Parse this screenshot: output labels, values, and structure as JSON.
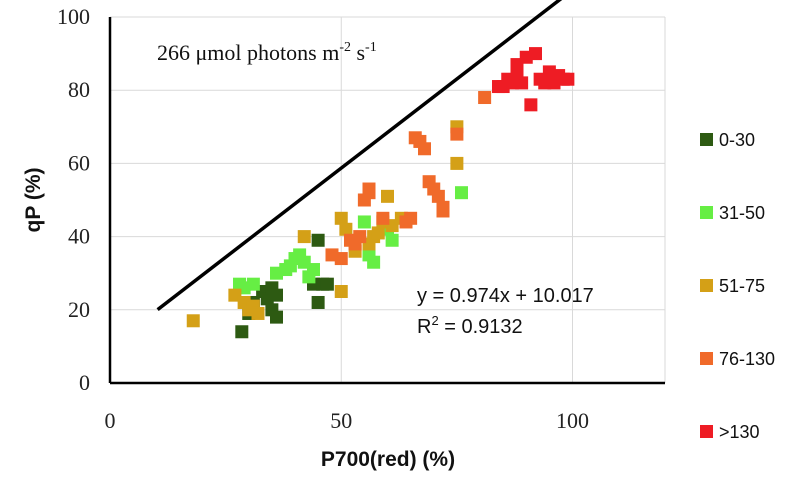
{
  "chart_data": {
    "type": "scatter",
    "title": "",
    "annotation": {
      "prefix": "266 μmol photons m",
      "sup1": "-2",
      "mid": " s",
      "sup2": "-1"
    },
    "xlabel": "P700(red) (%)",
    "ylabel": "qP (%)",
    "xlim": [
      0,
      120
    ],
    "ylim": [
      0,
      100
    ],
    "xticks": [
      0,
      50,
      100
    ],
    "yticks": [
      0,
      20,
      40,
      60,
      80,
      100
    ],
    "grid": true,
    "legend_position": "right",
    "series": [
      {
        "name": "0-30",
        "color": "#2d5a12",
        "points": [
          [
            28.5,
            14
          ],
          [
            30,
            19
          ],
          [
            31,
            22
          ],
          [
            33,
            25
          ],
          [
            34,
            23
          ],
          [
            35,
            26
          ],
          [
            35,
            20
          ],
          [
            36,
            18
          ],
          [
            36,
            24
          ],
          [
            44,
            27
          ],
          [
            45,
            39
          ],
          [
            45,
            22
          ],
          [
            46,
            27
          ],
          [
            47,
            27
          ]
        ]
      },
      {
        "name": "31-50",
        "color": "#66ee44",
        "points": [
          [
            28,
            27
          ],
          [
            29,
            26
          ],
          [
            31,
            27
          ],
          [
            36,
            30
          ],
          [
            38,
            31
          ],
          [
            39,
            32
          ],
          [
            40,
            34
          ],
          [
            41,
            35
          ],
          [
            42,
            33
          ],
          [
            43,
            29
          ],
          [
            44,
            31
          ],
          [
            55,
            44
          ],
          [
            56,
            35
          ],
          [
            57,
            33
          ],
          [
            60,
            42
          ],
          [
            61,
            39
          ],
          [
            76,
            52
          ]
        ]
      },
      {
        "name": "51-75",
        "color": "#d4a017",
        "points": [
          [
            18,
            17
          ],
          [
            27,
            24
          ],
          [
            29,
            22
          ],
          [
            30,
            20
          ],
          [
            31,
            21
          ],
          [
            32,
            19
          ],
          [
            42,
            40
          ],
          [
            50,
            25
          ],
          [
            50,
            45
          ],
          [
            51,
            42
          ],
          [
            53,
            36
          ],
          [
            56,
            38
          ],
          [
            57,
            40
          ],
          [
            58,
            41
          ],
          [
            59,
            44
          ],
          [
            60,
            51
          ],
          [
            61,
            43
          ],
          [
            63,
            45
          ],
          [
            75,
            60
          ],
          [
            75,
            70
          ]
        ]
      },
      {
        "name": "76-130",
        "color": "#f06a2a",
        "points": [
          [
            48,
            35
          ],
          [
            50,
            34
          ],
          [
            52,
            39
          ],
          [
            53,
            38
          ],
          [
            54,
            40
          ],
          [
            55,
            50
          ],
          [
            56,
            52
          ],
          [
            56,
            53
          ],
          [
            59,
            45
          ],
          [
            64,
            44
          ],
          [
            65,
            45
          ],
          [
            66,
            67
          ],
          [
            67,
            66
          ],
          [
            68,
            64
          ],
          [
            69,
            55
          ],
          [
            70,
            53
          ],
          [
            71,
            51
          ],
          [
            72,
            48
          ],
          [
            72,
            47
          ],
          [
            75,
            68
          ],
          [
            81,
            78
          ]
        ]
      },
      {
        "name": ">130",
        "color": "#ee1c24",
        "points": [
          [
            84,
            81
          ],
          [
            85,
            81
          ],
          [
            86,
            83
          ],
          [
            87,
            82
          ],
          [
            88,
            84
          ],
          [
            88,
            87
          ],
          [
            89,
            82
          ],
          [
            90,
            89
          ],
          [
            91,
            76
          ],
          [
            92,
            90
          ],
          [
            93,
            83
          ],
          [
            94,
            82
          ],
          [
            95,
            85
          ],
          [
            96,
            82
          ],
          [
            97,
            84
          ],
          [
            98,
            83
          ],
          [
            99,
            83
          ]
        ]
      }
    ],
    "trendline": {
      "slope": 0.974,
      "intercept": 10.017,
      "x_range": [
        10.3,
        106
      ],
      "equation": "y = 0.974x + 10.017",
      "r2_prefix": "R",
      "r2_sup": "2",
      "r2_value": " = 0.9132"
    }
  }
}
